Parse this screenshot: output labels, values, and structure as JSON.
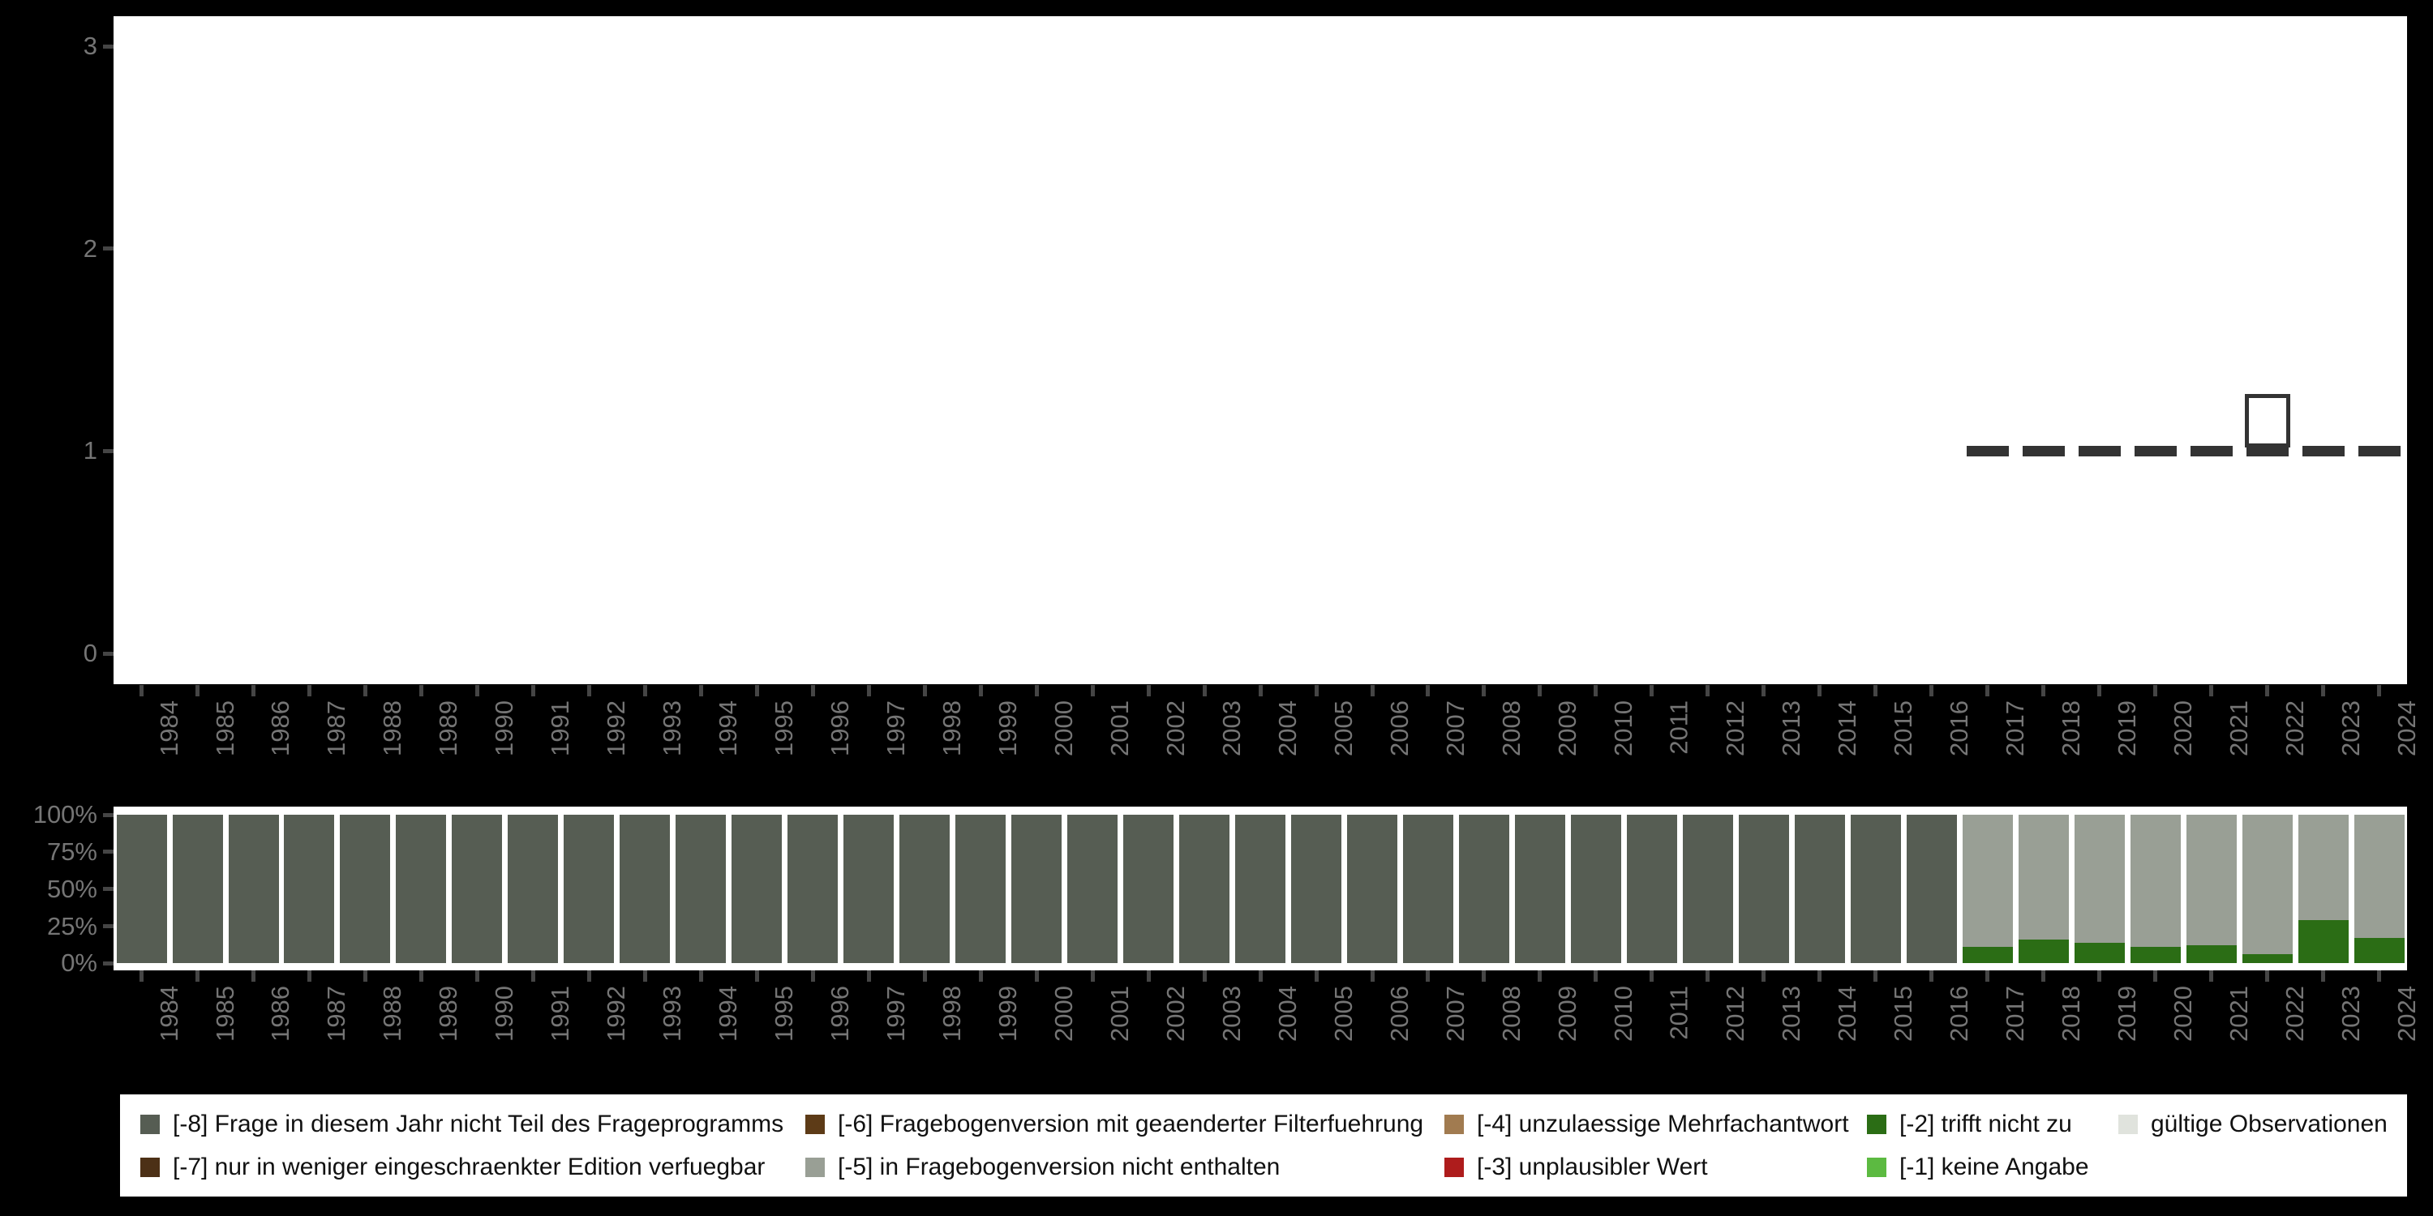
{
  "figure": {
    "background": "#000000",
    "panel_background": "#ffffff",
    "axis_text_color": "#757575",
    "tick_mark_color": "#454545",
    "mark_color": "#333333"
  },
  "years": [
    "1984",
    "1985",
    "1986",
    "1987",
    "1988",
    "1989",
    "1990",
    "1991",
    "1992",
    "1993",
    "1994",
    "1995",
    "1996",
    "1997",
    "1998",
    "1999",
    "2000",
    "2001",
    "2002",
    "2003",
    "2004",
    "2005",
    "2006",
    "2007",
    "2008",
    "2009",
    "2010",
    "2011",
    "2012",
    "2013",
    "2014",
    "2015",
    "2016",
    "2017",
    "2018",
    "2019",
    "2020",
    "2021",
    "2022",
    "2023",
    "2024"
  ],
  "chart_data": [
    {
      "type": "boxplot",
      "title": "",
      "xlabel": "",
      "ylabel": "",
      "ylim": [
        0,
        3
      ],
      "yticks": [
        "0",
        "1",
        "2",
        "3"
      ],
      "grid": false,
      "categories": [
        "1984",
        "1985",
        "1986",
        "1987",
        "1988",
        "1989",
        "1990",
        "1991",
        "1992",
        "1993",
        "1994",
        "1995",
        "1996",
        "1997",
        "1998",
        "1999",
        "2000",
        "2001",
        "2002",
        "2003",
        "2004",
        "2005",
        "2006",
        "2007",
        "2008",
        "2009",
        "2010",
        "2011",
        "2012",
        "2013",
        "2014",
        "2015",
        "2016",
        "2017",
        "2018",
        "2019",
        "2020",
        "2021",
        "2022",
        "2023",
        "2024"
      ],
      "marks": [
        {
          "year": "2017",
          "median": 1
        },
        {
          "year": "2018",
          "median": 1
        },
        {
          "year": "2019",
          "median": 1
        },
        {
          "year": "2020",
          "median": 1
        },
        {
          "year": "2021",
          "median": 1
        },
        {
          "year": "2022",
          "median": 1,
          "box_low": 1.0,
          "box_high": 1.2
        },
        {
          "year": "2023",
          "median": 1
        },
        {
          "year": "2024",
          "median": 1
        }
      ]
    },
    {
      "type": "bar",
      "stacked": true,
      "units": "percent",
      "title": "",
      "xlabel": "",
      "ylabel": "",
      "ylim": [
        0,
        100
      ],
      "yticks": [
        "0%",
        "25%",
        "50%",
        "75%",
        "100%"
      ],
      "grid": false,
      "categories": [
        "1984",
        "1985",
        "1986",
        "1987",
        "1988",
        "1989",
        "1990",
        "1991",
        "1992",
        "1993",
        "1994",
        "1995",
        "1996",
        "1997",
        "1998",
        "1999",
        "2000",
        "2001",
        "2002",
        "2003",
        "2004",
        "2005",
        "2006",
        "2007",
        "2008",
        "2009",
        "2010",
        "2011",
        "2012",
        "2013",
        "2014",
        "2015",
        "2016",
        "2017",
        "2018",
        "2019",
        "2020",
        "2021",
        "2022",
        "2023",
        "2024"
      ],
      "series": [
        {
          "name": "[-8] Frage in diesem Jahr nicht Teil des Frageprogramms",
          "color": "#565d53",
          "values": [
            100,
            100,
            100,
            100,
            100,
            100,
            100,
            100,
            100,
            100,
            100,
            100,
            100,
            100,
            100,
            100,
            100,
            100,
            100,
            100,
            100,
            100,
            100,
            100,
            100,
            100,
            100,
            100,
            100,
            100,
            100,
            100,
            100,
            0,
            0,
            0,
            0,
            0,
            0,
            0,
            0
          ]
        },
        {
          "name": "[-5] in Fragebogenversion nicht enthalten",
          "color": "#999f95",
          "values": [
            0,
            0,
            0,
            0,
            0,
            0,
            0,
            0,
            0,
            0,
            0,
            0,
            0,
            0,
            0,
            0,
            0,
            0,
            0,
            0,
            0,
            0,
            0,
            0,
            0,
            0,
            0,
            0,
            0,
            0,
            0,
            0,
            0,
            89,
            84,
            86,
            89,
            88,
            94,
            71,
            83
          ]
        },
        {
          "name": "[-2] trifft nicht zu",
          "color": "#2b6d15",
          "values": [
            0,
            0,
            0,
            0,
            0,
            0,
            0,
            0,
            0,
            0,
            0,
            0,
            0,
            0,
            0,
            0,
            0,
            0,
            0,
            0,
            0,
            0,
            0,
            0,
            0,
            0,
            0,
            0,
            0,
            0,
            0,
            0,
            0,
            11,
            16,
            14,
            11,
            12,
            6,
            29,
            17
          ]
        }
      ]
    }
  ],
  "legend": {
    "background": "#ffffff",
    "text_color": "#111111",
    "items": [
      {
        "label": "[-8] Frage in diesem Jahr nicht Teil des Frageprogramms",
        "color": "#565d53",
        "column": 0,
        "row": 0
      },
      {
        "label": "[-7] nur in weniger eingeschraenkter Edition verfuegbar",
        "color": "#4c3016",
        "column": 0,
        "row": 1
      },
      {
        "label": "[-6] Fragebogenversion mit geaenderter Filterfuehrung",
        "color": "#5d3b17",
        "column": 1,
        "row": 0
      },
      {
        "label": "[-5] in Fragebogenversion nicht enthalten",
        "color": "#999f95",
        "column": 1,
        "row": 1
      },
      {
        "label": "[-4] unzulaessige Mehrfachantwort",
        "color": "#a17b50",
        "column": 2,
        "row": 0
      },
      {
        "label": "[-3] unplausibler Wert",
        "color": "#ae1c1c",
        "column": 2,
        "row": 1
      },
      {
        "label": "[-2] trifft nicht zu",
        "color": "#2b6d15",
        "column": 3,
        "row": 0
      },
      {
        "label": "[-1] keine Angabe",
        "color": "#5cba41",
        "column": 3,
        "row": 1
      },
      {
        "label": "gültige Observationen",
        "color": "#e0e3dd",
        "column": 4,
        "row": 0
      }
    ]
  }
}
